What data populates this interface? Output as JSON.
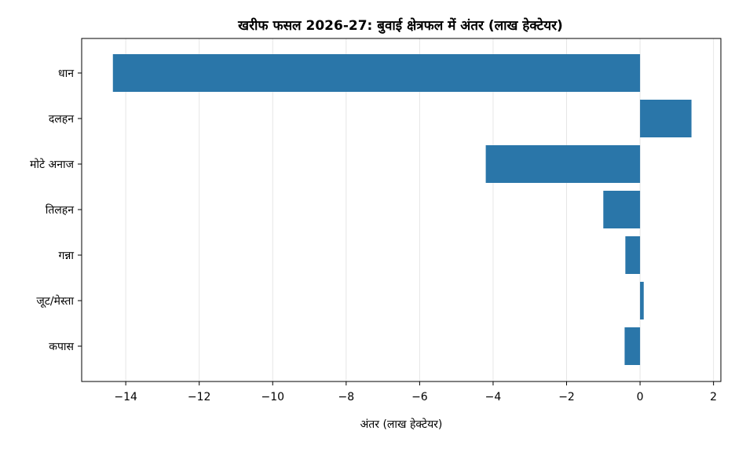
{
  "chart_data": {
    "type": "bar",
    "orientation": "horizontal",
    "title": "खरीफ फसल 2026-27: बुवाई क्षेत्रफल में अंतर (लाख हेक्टेयर)",
    "xlabel": "अंतर (लाख हेक्टेयर)",
    "ylabel": "",
    "categories": [
      "धान",
      "दलहन",
      "मोटे अनाज",
      "तिलहन",
      "गन्ना",
      "जूट/मेस्ता",
      "कपास"
    ],
    "values": [
      -14.35,
      1.4,
      -4.2,
      -1.0,
      -0.4,
      0.1,
      -0.42
    ],
    "xlim": [
      -15.2,
      2.2
    ],
    "xticks": [
      -14,
      -12,
      -10,
      -8,
      -6,
      -4,
      -2,
      0,
      2
    ],
    "xtick_labels": [
      "−14",
      "−12",
      "−10",
      "−8",
      "−6",
      "−4",
      "−2",
      "0",
      "2"
    ],
    "grid": "x",
    "bar_color": "#2a76a9"
  }
}
